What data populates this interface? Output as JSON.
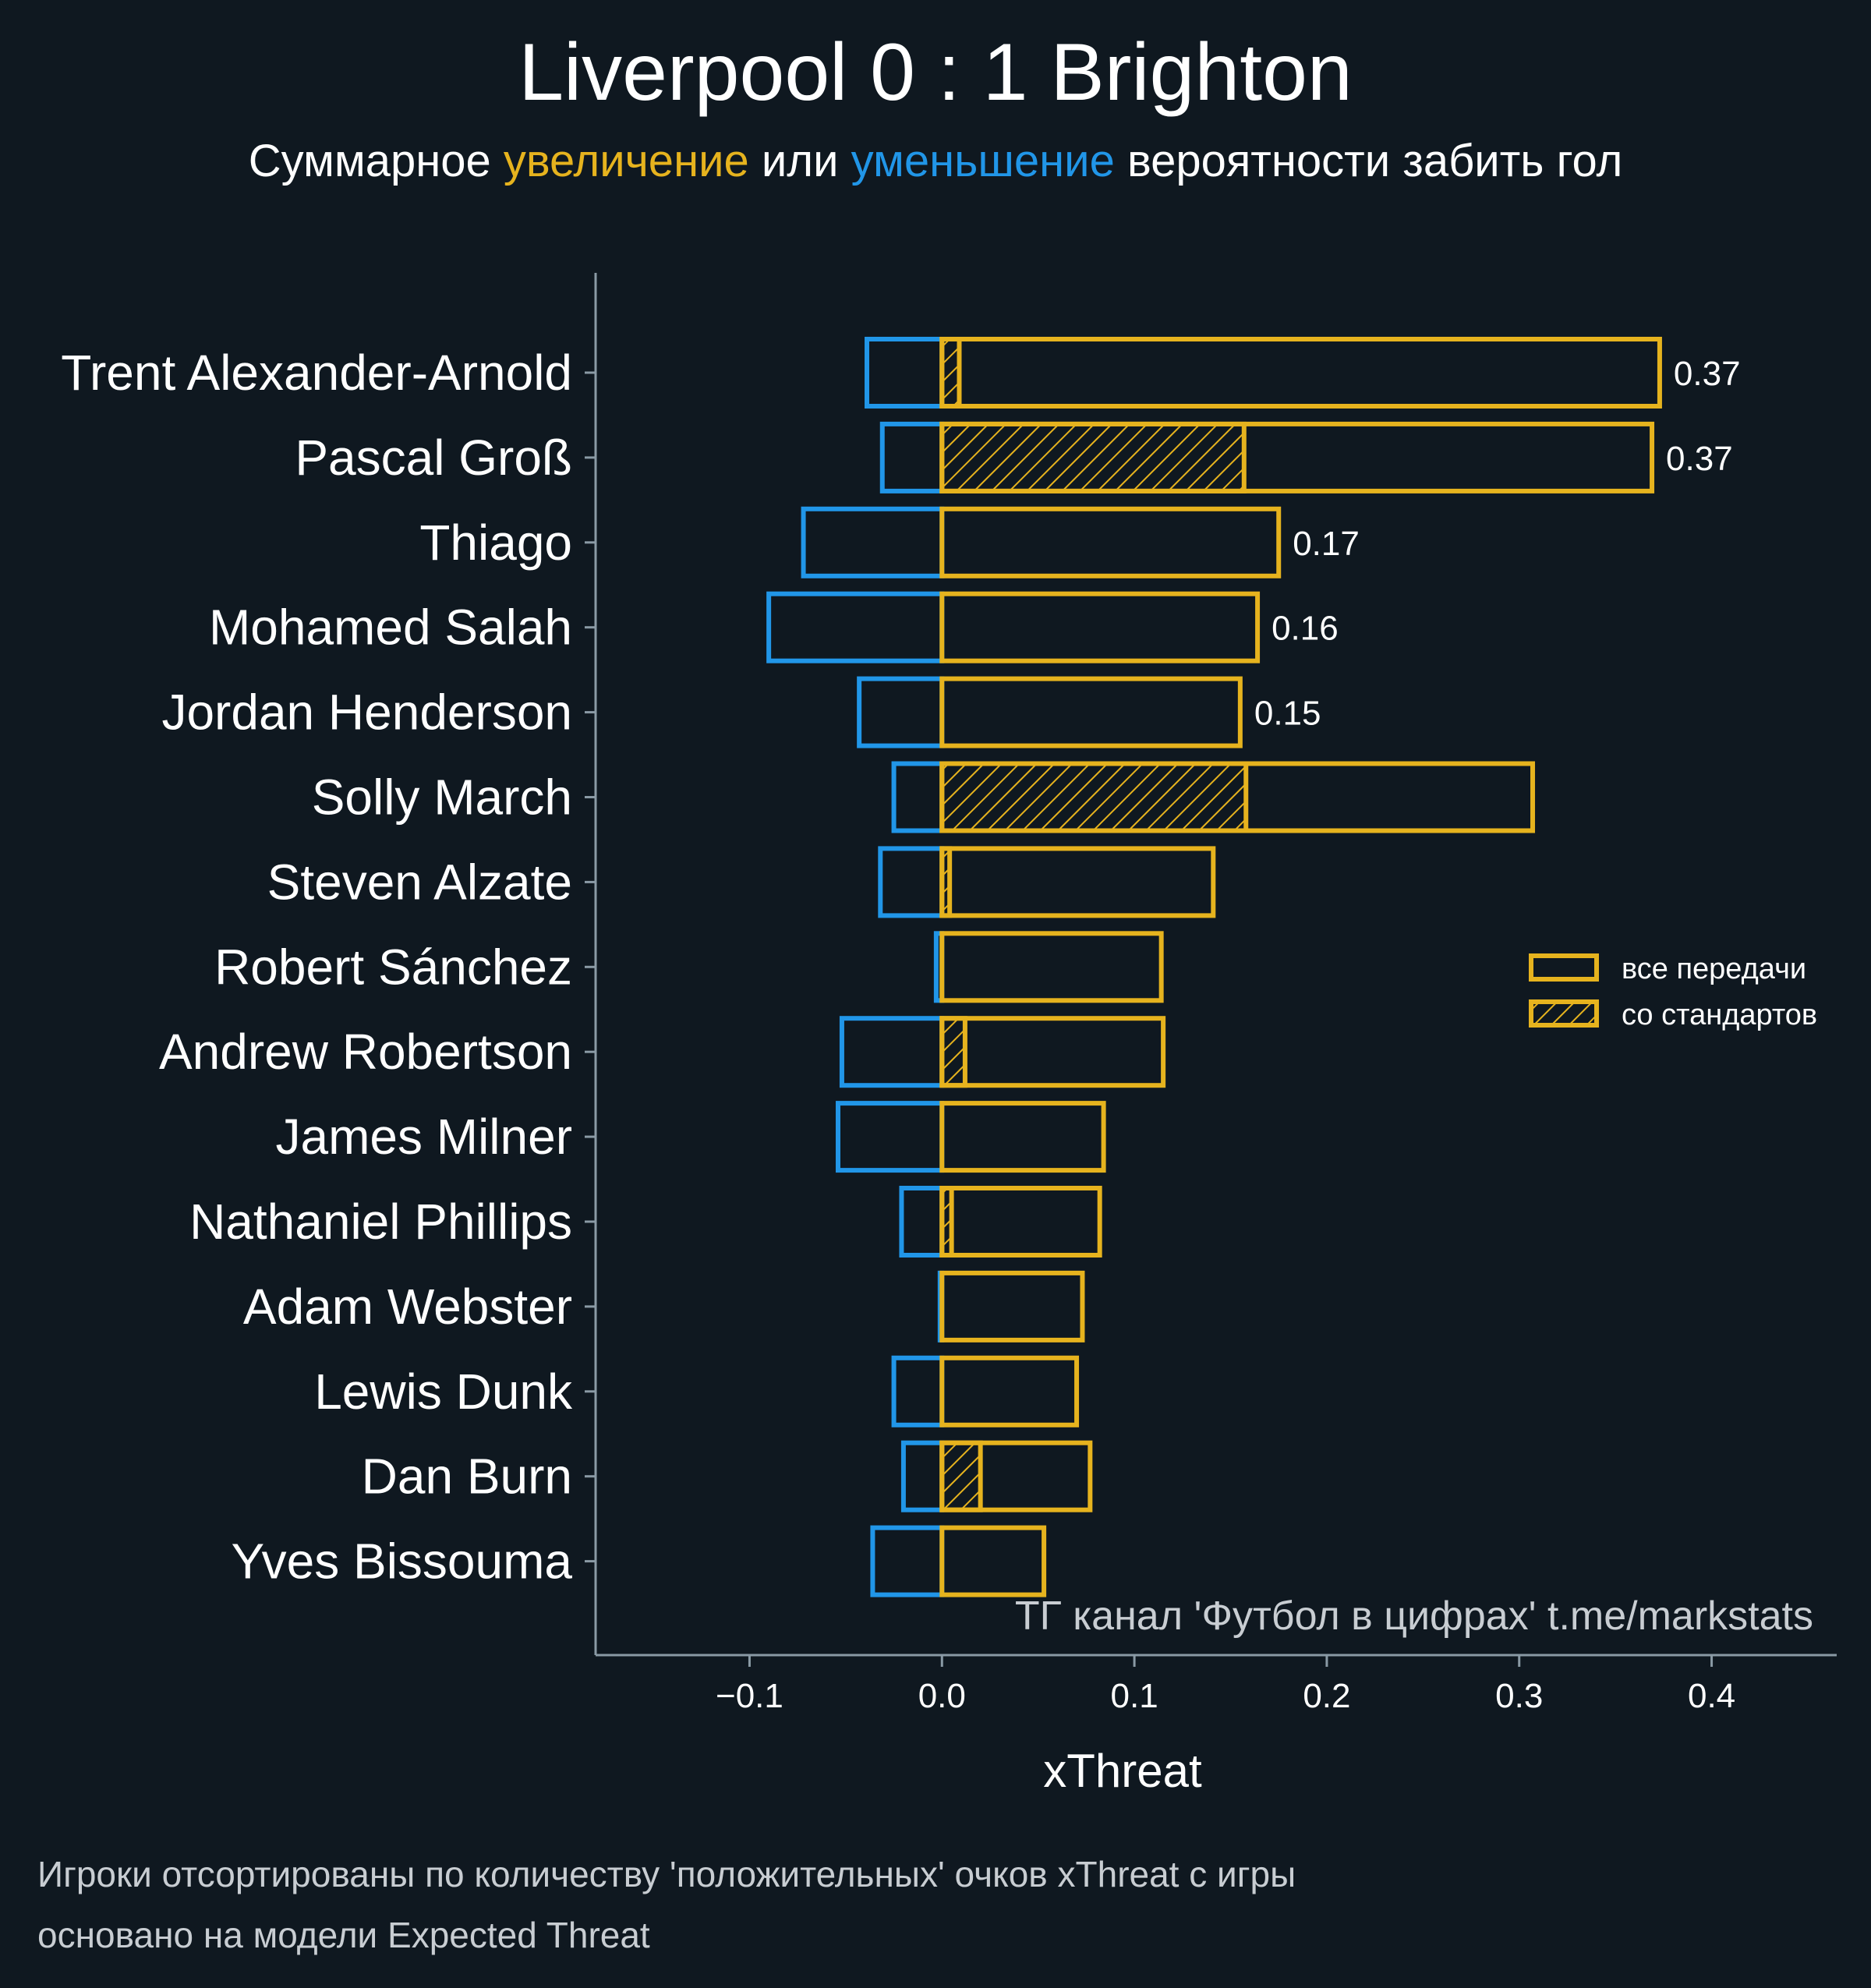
{
  "colors": {
    "background": "#0f1820",
    "positive": "#e6b31e",
    "negative": "#2196e8",
    "axis": "#8a9aa5",
    "muted_text": "#c8cdd2"
  },
  "header": {
    "title": "Liverpool 0 : 1 Brighton",
    "subtitle_part1": "Суммарное ",
    "subtitle_positive": "увеличение",
    "subtitle_part2": " или ",
    "subtitle_negative": "уменьшение",
    "subtitle_part3": " вероятности забить гол"
  },
  "watermark": "ТГ канал 'Футбол в цифрах'  t.me/markstats",
  "footnotes": [
    "Игроки отсортированы по количеству 'положительных' очков xThreat с игры",
    "основано на модели Expected Threat"
  ],
  "chart_data": {
    "type": "bar",
    "orientation": "horizontal",
    "xlabel": "xThreat",
    "xlim": [
      -0.18,
      0.465
    ],
    "xticks": [
      -0.1,
      0.0,
      0.1,
      0.2,
      0.3,
      0.4
    ],
    "xtick_labels": [
      "−0.1",
      "0.0",
      "0.1",
      "0.2",
      "0.3",
      "0.4"
    ],
    "grid": false,
    "legend_position": "right",
    "legend": [
      {
        "label": "все передачи",
        "style": "outline"
      },
      {
        "label": "со стандартов",
        "style": "hatched"
      }
    ],
    "categories": [
      "Trent Alexander-Arnold",
      "Pascal Groß",
      "Thiago",
      "Mohamed Salah",
      "Jordan Henderson",
      "Solly March",
      "Steven Alzate",
      "Robert Sánchez",
      "Andrew Robertson",
      "James Milner",
      "Nathaniel Phillips",
      "Adam Webster",
      "Lewis Dunk",
      "Dan Burn",
      "Yves Bissouma"
    ],
    "series": [
      {
        "name": "все передачи",
        "values": [
          0.373,
          0.369,
          0.175,
          0.164,
          0.155,
          0.307,
          0.141,
          0.114,
          0.115,
          0.084,
          0.082,
          0.073,
          0.07,
          0.077,
          0.053
        ]
      },
      {
        "name": "со стандартов",
        "values": [
          0.009,
          0.157,
          0.0,
          0.0,
          0.0,
          0.158,
          0.004,
          0.0,
          0.012,
          0.0,
          0.005,
          0.0,
          0.0,
          0.02,
          0.0
        ]
      },
      {
        "values": [
          -0.039,
          -0.031,
          -0.072,
          -0.09,
          -0.043,
          -0.025,
          -0.032,
          -0.003,
          -0.052,
          -0.054,
          -0.021,
          -0.001,
          -0.025,
          -0.02,
          -0.036
        ]
      }
    ],
    "value_labels": [
      "0.37",
      "0.37",
      "0.17",
      "0.16",
      "0.15",
      "",
      "",
      "",
      "",
      "",
      "",
      "",
      "",
      "",
      ""
    ]
  }
}
